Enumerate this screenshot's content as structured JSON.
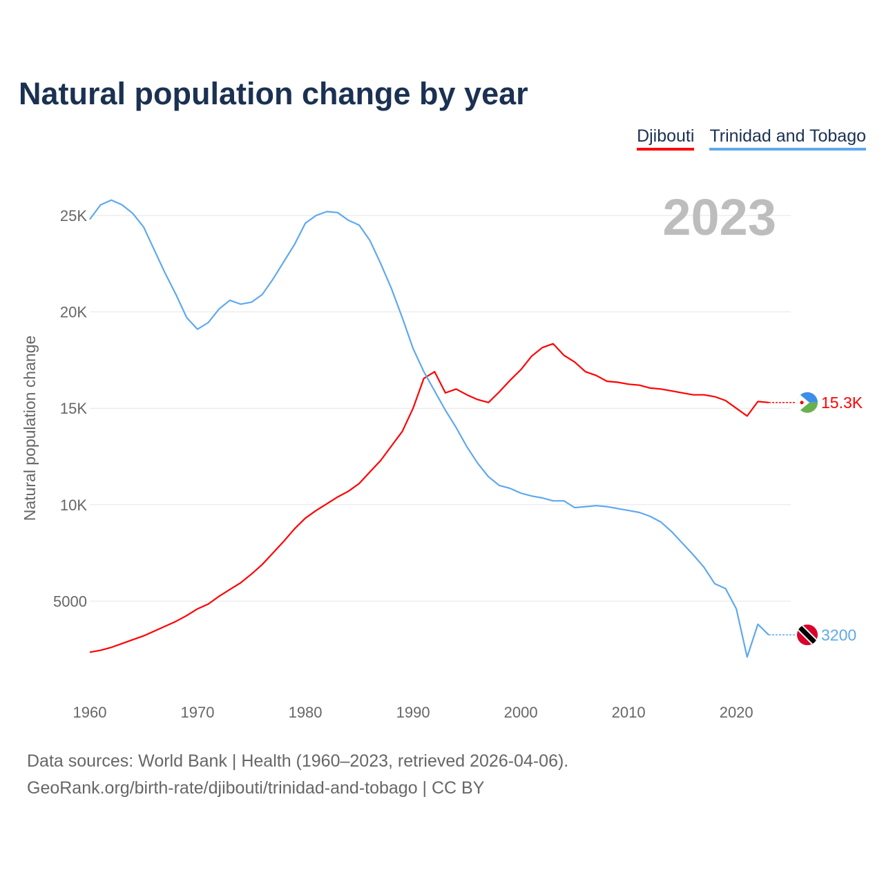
{
  "chart_data": {
    "type": "line",
    "title": "Natural population change by year",
    "xlabel": "",
    "ylabel": "Natural population change",
    "year_label": "2023",
    "xlim": [
      1960,
      2023
    ],
    "ylim": [
      0,
      27000
    ],
    "x_ticks": [
      "1960",
      "1970",
      "1980",
      "1990",
      "2000",
      "2010",
      "2020"
    ],
    "y_ticks": [
      {
        "v": 5000,
        "label": "5000"
      },
      {
        "v": 10000,
        "label": "10K"
      },
      {
        "v": 15000,
        "label": "15K"
      },
      {
        "v": 20000,
        "label": "20K"
      },
      {
        "v": 25000,
        "label": "25K"
      }
    ],
    "legend_position": "top-right",
    "x": [
      1960,
      1961,
      1962,
      1963,
      1964,
      1965,
      1966,
      1967,
      1968,
      1969,
      1970,
      1971,
      1972,
      1973,
      1974,
      1975,
      1976,
      1977,
      1978,
      1979,
      1980,
      1981,
      1982,
      1983,
      1984,
      1985,
      1986,
      1987,
      1988,
      1989,
      1990,
      1991,
      1992,
      1993,
      1994,
      1995,
      1996,
      1997,
      1998,
      1999,
      2000,
      2001,
      2002,
      2003,
      2004,
      2005,
      2006,
      2007,
      2008,
      2009,
      2010,
      2011,
      2012,
      2013,
      2014,
      2015,
      2016,
      2017,
      2018,
      2019,
      2020,
      2021,
      2022,
      2023
    ],
    "series": [
      {
        "name": "Djibouti",
        "color": "#ff0000",
        "end_label": "15.3K",
        "values": [
          2350,
          2450,
          2600,
          2800,
          3000,
          3200,
          3450,
          3700,
          3950,
          4250,
          4600,
          4850,
          5250,
          5600,
          5950,
          6400,
          6900,
          7500,
          8100,
          8750,
          9300,
          9700,
          10050,
          10400,
          10700,
          11100,
          11700,
          12300,
          13050,
          13800,
          15000,
          16550,
          16900,
          15800,
          16000,
          15700,
          15450,
          15300,
          15850,
          16450,
          17000,
          17700,
          18150,
          18350,
          17750,
          17400,
          16900,
          16700,
          16400,
          16350,
          16250,
          16200,
          16050,
          16000,
          15900,
          15800,
          15700,
          15700,
          15600,
          15400,
          15000,
          14600,
          15350,
          15300
        ]
      },
      {
        "name": "Trinidad and Tobago",
        "color": "#5ea8ee",
        "end_label": "3200",
        "values": [
          24800,
          25550,
          25800,
          25550,
          25100,
          24400,
          23200,
          22000,
          20900,
          19700,
          19100,
          19450,
          20150,
          20600,
          20400,
          20500,
          20900,
          21700,
          22600,
          23500,
          24600,
          25000,
          25200,
          25150,
          24750,
          24500,
          23700,
          22500,
          21200,
          19700,
          18100,
          16900,
          15900,
          14900,
          14000,
          13000,
          12150,
          11450,
          11000,
          10850,
          10600,
          10450,
          10350,
          10200,
          10200,
          9850,
          9900,
          9950,
          9900,
          9800,
          9700,
          9600,
          9400,
          9100,
          8600,
          8000,
          7400,
          6750,
          5900,
          5650,
          4600,
          2100,
          3800,
          3250
        ]
      }
    ]
  },
  "sources": {
    "line1": "Data sources: World Bank | Health (1960–2023, retrieved 2026-04-06).",
    "line2": "GeoRank.org/birth-rate/djibouti/trinidad-and-tobago | CC BY"
  }
}
